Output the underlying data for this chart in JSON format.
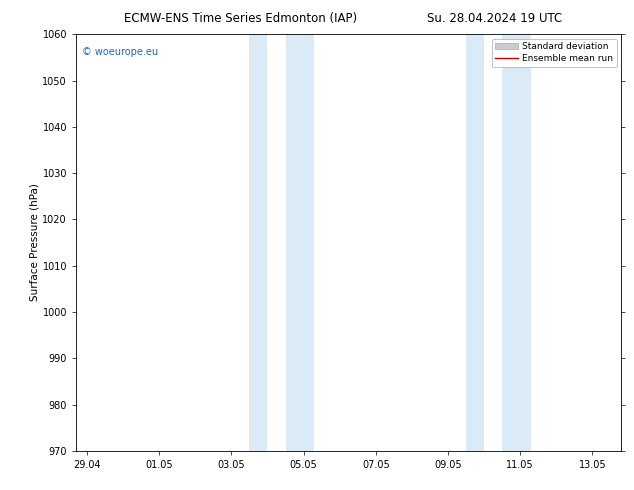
{
  "title_left": "ECMW-ENS Time Series Edmonton (IAP)",
  "title_right": "Su. 28.04.2024 19 UTC",
  "ylabel": "Surface Pressure (hPa)",
  "ylim": [
    970,
    1060
  ],
  "yticks": [
    970,
    980,
    990,
    1000,
    1010,
    1020,
    1030,
    1040,
    1050,
    1060
  ],
  "xtick_labels": [
    "29.04",
    "01.05",
    "03.05",
    "05.05",
    "07.05",
    "09.05",
    "11.05",
    "13.05"
  ],
  "xtick_positions": [
    0,
    2,
    4,
    6,
    8,
    10,
    12,
    14
  ],
  "xlim": [
    -0.3,
    14.8
  ],
  "shade_bands": [
    {
      "x_start": 4.5,
      "x_end": 5.0
    },
    {
      "x_start": 5.5,
      "x_end": 6.3
    },
    {
      "x_start": 10.5,
      "x_end": 11.0
    },
    {
      "x_start": 11.5,
      "x_end": 12.3
    }
  ],
  "shade_color": "#daeaf7",
  "watermark_text": "© woeurope.eu",
  "watermark_color": "#1a6bb5",
  "legend_std_label": "Standard deviation",
  "legend_mean_label": "Ensemble mean run",
  "legend_std_color": "#cccccc",
  "legend_mean_color": "#cc0000",
  "background_color": "#ffffff",
  "title_fontsize": 8.5,
  "ylabel_fontsize": 7.5,
  "tick_fontsize": 7,
  "watermark_fontsize": 7,
  "legend_fontsize": 6.5
}
